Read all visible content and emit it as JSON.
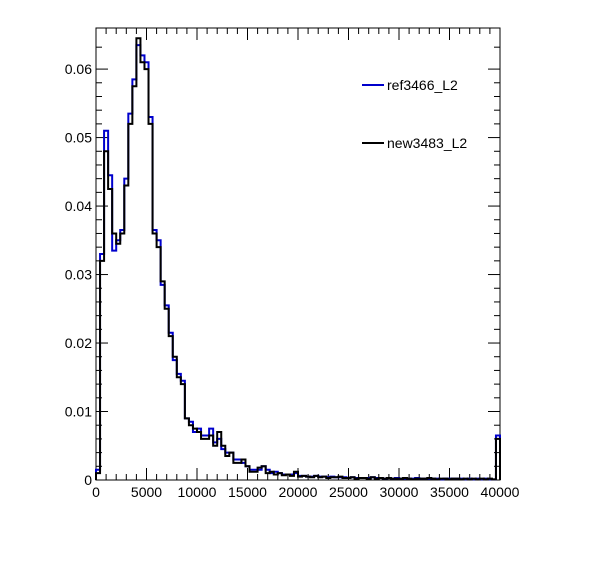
{
  "chart_data": {
    "type": "histogram-step",
    "title": "",
    "xlabel": "",
    "ylabel": "",
    "xlim": [
      0,
      40000
    ],
    "ylim": [
      0,
      0.066
    ],
    "bin_width": 400,
    "x_ticks": [
      0,
      5000,
      10000,
      15000,
      20000,
      25000,
      30000,
      35000,
      40000
    ],
    "x_tick_labels": [
      "0",
      "5000",
      "10000",
      "15000",
      "20000",
      "25000",
      "30000",
      "35000",
      "40000"
    ],
    "y_ticks": [
      0,
      0.01,
      0.02,
      0.03,
      0.04,
      0.05,
      0.06
    ],
    "y_tick_labels": [
      "0",
      "0.01",
      "0.02",
      "0.03",
      "0.04",
      "0.05",
      "0.06"
    ],
    "grid": false,
    "legend_position": "top-right",
    "series": [
      {
        "name": "ref3466_L2",
        "color": "#0000cc",
        "values": [
          0.0015,
          0.033,
          0.051,
          0.0445,
          0.0335,
          0.035,
          0.0365,
          0.044,
          0.0535,
          0.0585,
          0.0635,
          0.062,
          0.061,
          0.053,
          0.0365,
          0.035,
          0.0285,
          0.0255,
          0.0215,
          0.0175,
          0.0155,
          0.0145,
          0.009,
          0.0085,
          0.007,
          0.0075,
          0.0065,
          0.0065,
          0.0075,
          0.0055,
          0.006,
          0.0045,
          0.004,
          0.004,
          0.003,
          0.003,
          0.0025,
          0.002,
          0.0015,
          0.0015,
          0.0015,
          0.002,
          0.0015,
          0.001,
          0.0012,
          0.001,
          0.0008,
          0.0008,
          0.0008,
          0.001,
          0.0006,
          0.0006,
          0.0005,
          0.0005,
          0.0006,
          0.0005,
          0.0005,
          0.0004,
          0.0005,
          0.0004,
          0.0004,
          0.0004,
          0.0003,
          0.0004,
          0.0003,
          0.0003,
          0.0003,
          0.0003,
          0.0004,
          0.0003,
          0.0003,
          0.0002,
          0.0003,
          0.0002,
          0.0003,
          0.0002,
          0.0002,
          0.0002,
          0.0002,
          0.0003,
          0.0002,
          0.0002,
          0.0002,
          0.0002,
          0.0002,
          0.0001,
          0.0002,
          0.0002,
          0.0002,
          0.0002,
          0.0002,
          0.0001,
          0.0002,
          0.0001,
          0.0002,
          0.0001,
          0.0002,
          0.0001,
          0.0001,
          0.0065
        ]
      },
      {
        "name": "new3483_L2",
        "color": "#000000",
        "values": [
          0.001,
          0.032,
          0.048,
          0.0425,
          0.036,
          0.0345,
          0.036,
          0.043,
          0.052,
          0.0575,
          0.0645,
          0.061,
          0.06,
          0.052,
          0.036,
          0.034,
          0.029,
          0.025,
          0.021,
          0.018,
          0.015,
          0.014,
          0.009,
          0.008,
          0.0075,
          0.007,
          0.006,
          0.006,
          0.0065,
          0.005,
          0.007,
          0.005,
          0.0035,
          0.004,
          0.0025,
          0.0025,
          0.003,
          0.002,
          0.0012,
          0.0012,
          0.0018,
          0.002,
          0.001,
          0.0012,
          0.0008,
          0.001,
          0.0007,
          0.0008,
          0.0006,
          0.0012,
          0.0005,
          0.0006,
          0.0005,
          0.0004,
          0.0006,
          0.0004,
          0.0005,
          0.0003,
          0.0004,
          0.0004,
          0.0005,
          0.0003,
          0.0003,
          0.0004,
          0.0002,
          0.0003,
          0.0003,
          0.0002,
          0.0004,
          0.0002,
          0.0003,
          0.0002,
          0.0003,
          0.0002,
          0.0002,
          0.0002,
          0.0003,
          0.0002,
          0.0001,
          0.0002,
          0.0002,
          0.0002,
          0.0003,
          0.0002,
          0.0001,
          0.0002,
          0.0002,
          0.0001,
          0.0002,
          0.0002,
          0.0001,
          0.0002,
          0.0001,
          0.0002,
          0.0001,
          0.0002,
          0.0001,
          0.0002,
          0.0001,
          0.006
        ]
      }
    ]
  }
}
